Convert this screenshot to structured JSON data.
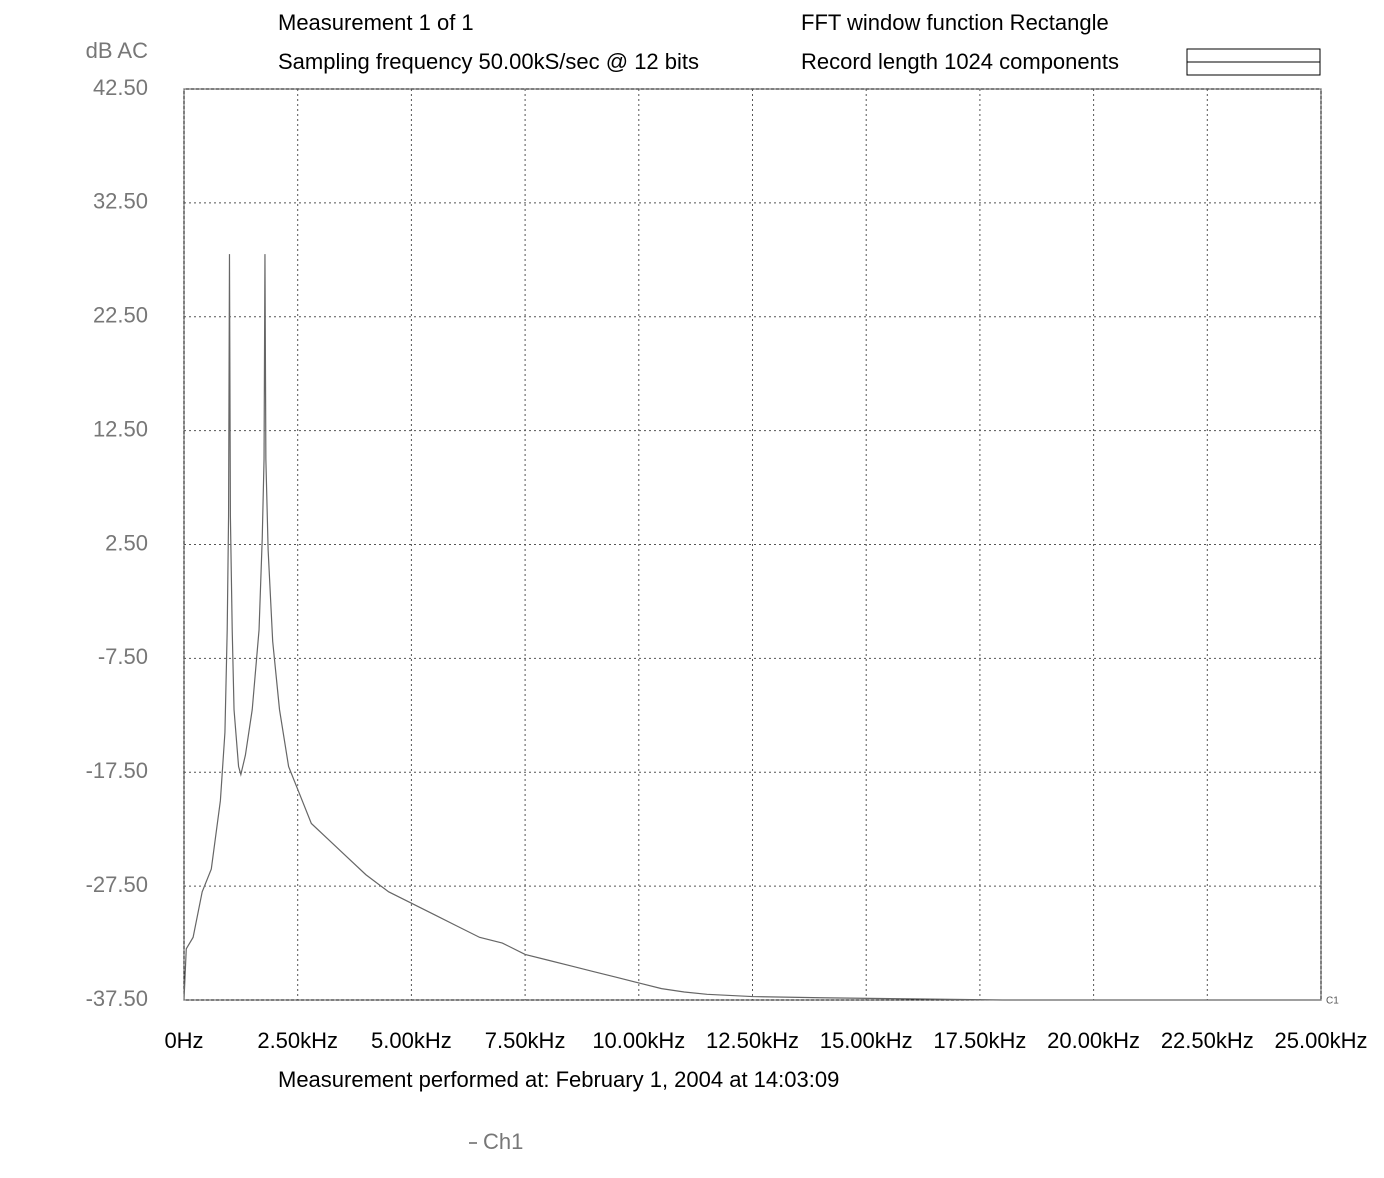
{
  "chart_data": {
    "type": "line",
    "title": "Measurement 1 of 1",
    "subtitle": "Sampling frequency 50.00kS/sec @ 12 bits",
    "annotations": [
      "FFT window function Rectangle",
      "Record length 1024 components",
      "C1"
    ],
    "ylabel": "dB  AC",
    "footer": "Measurement performed at:  February 1, 2004 at 14:03:09",
    "xlim": [
      0,
      25000
    ],
    "xticks": [
      {
        "value": 0,
        "label": "0Hz"
      },
      {
        "value": 2500,
        "label": "2.50kHz"
      },
      {
        "value": 5000,
        "label": "5.00kHz"
      },
      {
        "value": 7500,
        "label": "7.50kHz"
      },
      {
        "value": 10000,
        "label": "10.00kHz"
      },
      {
        "value": 12500,
        "label": "12.50kHz"
      },
      {
        "value": 15000,
        "label": "15.00kHz"
      },
      {
        "value": 17500,
        "label": "17.50kHz"
      },
      {
        "value": 20000,
        "label": "20.00kHz"
      },
      {
        "value": 22500,
        "label": "22.50kHz"
      },
      {
        "value": 25000,
        "label": "25.00kHz"
      }
    ],
    "ylim": [
      -37.5,
      42.5
    ],
    "yticks": [
      {
        "value": 42.5,
        "label": "42.50"
      },
      {
        "value": 32.5,
        "label": "32.50"
      },
      {
        "value": 22.5,
        "label": "22.50"
      },
      {
        "value": 12.5,
        "label": "12.50"
      },
      {
        "value": 2.5,
        "label": "2.50"
      },
      {
        "value": -7.5,
        "label": "-7.50"
      },
      {
        "value": -17.5,
        "label": "-17.50"
      },
      {
        "value": -27.5,
        "label": "-27.50"
      },
      {
        "value": -37.5,
        "label": "-37.50"
      }
    ],
    "grid": true,
    "series": [
      {
        "name": "Ch1",
        "color": "#666666",
        "x": [
          0,
          50,
          200,
          400,
          600,
          800,
          900,
          950,
          980,
          1000,
          1020,
          1060,
          1100,
          1200,
          1250,
          1350,
          1500,
          1650,
          1720,
          1760,
          1780,
          1800,
          1850,
          1950,
          2100,
          2300,
          2500,
          2800,
          3200,
          3600,
          4000,
          4500,
          5000,
          5500,
          6000,
          6500,
          7000,
          7500,
          8000,
          8500,
          9000,
          9500,
          10000,
          10500,
          11000,
          11500,
          12500,
          14000,
          16000,
          18000,
          20000,
          22000,
          24000,
          25000
        ],
        "values": [
          -37.5,
          -33,
          -32,
          -28,
          -26,
          -20,
          -14,
          -5,
          5,
          28,
          5,
          -5,
          -12,
          -17,
          -17.7,
          -16,
          -12,
          -5,
          3,
          10,
          28,
          10,
          2,
          -6,
          -12,
          -17,
          -19,
          -22,
          -23.5,
          -25,
          -26.5,
          -28,
          -29,
          -30,
          -31,
          -32,
          -32.5,
          -33.5,
          -34,
          -34.5,
          -35,
          -35.5,
          -36,
          -36.5,
          -36.8,
          -37,
          -37.2,
          -37.3,
          -37.4,
          -37.5,
          -37.5,
          -37.5,
          -37.5,
          -37.5
        ]
      }
    ]
  }
}
